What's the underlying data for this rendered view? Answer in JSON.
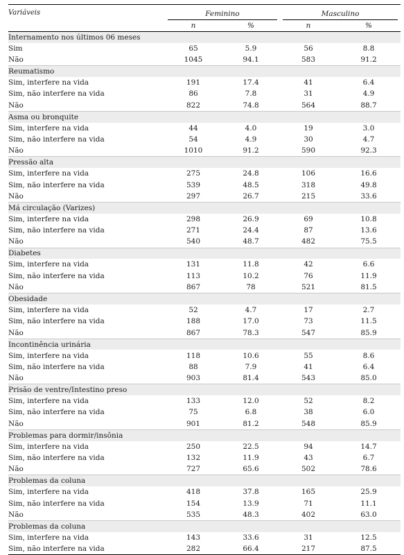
{
  "table": {
    "col_variaveis": "Variáveis",
    "group_feminino": "Feminino",
    "group_masculino": "Masculino",
    "col_n": "n",
    "col_pct": "%",
    "sections": [
      {
        "title": "Internamento nos últimos 06 meses",
        "rows": [
          [
            "Sim",
            "65",
            "5.9",
            "56",
            "8.8"
          ],
          [
            "Não",
            "1045",
            "94.1",
            "583",
            "91.2"
          ]
        ]
      },
      {
        "title": "Reumatismo",
        "rows": [
          [
            "Sim, interfere na vida",
            "191",
            "17.4",
            "41",
            "6.4"
          ],
          [
            "Sim, não interfere na vida",
            "86",
            "7.8",
            "31",
            "4.9"
          ],
          [
            "Não",
            "822",
            "74.8",
            "564",
            "88.7"
          ]
        ]
      },
      {
        "title": "Asma ou bronquite",
        "rows": [
          [
            "Sim, interfere na vida",
            "44",
            "4.0",
            "19",
            "3.0"
          ],
          [
            "Sim, não interfere na vida",
            "54",
            "4.9",
            "30",
            "4.7"
          ],
          [
            "Não",
            "1010",
            "91.2",
            "590",
            "92.3"
          ]
        ]
      },
      {
        "title": "Pressão alta",
        "rows": [
          [
            "Sim, interfere na vida",
            "275",
            "24.8",
            "106",
            "16.6"
          ],
          [
            "Sim, não interfere na vida",
            "539",
            "48.5",
            "318",
            "49.8"
          ],
          [
            "Não",
            "297",
            "26.7",
            "215",
            "33.6"
          ]
        ]
      },
      {
        "title": "Má circulação (Varizes)",
        "rows": [
          [
            "Sim, interfere na vida",
            "298",
            "26.9",
            "69",
            "10.8"
          ],
          [
            "Sim, não interfere na vida",
            "271",
            "24.4",
            "87",
            "13.6"
          ],
          [
            "Não",
            "540",
            "48.7",
            "482",
            "75.5"
          ]
        ]
      },
      {
        "title": "Diabetes",
        "rows": [
          [
            "Sim, interfere na vida",
            "131",
            "11.8",
            "42",
            "6.6"
          ],
          [
            "Sim, não interfere na vida",
            "113",
            "10.2",
            "76",
            "11.9"
          ],
          [
            "Não",
            "867",
            "78",
            "521",
            "81.5"
          ]
        ]
      },
      {
        "title": "Obesidade",
        "rows": [
          [
            "Sim, interfere na vida",
            "52",
            "4.7",
            "17",
            "2.7"
          ],
          [
            "Sim, não interfere na vida",
            "188",
            "17.0",
            "73",
            "11.5"
          ],
          [
            "Não",
            "867",
            "78.3",
            "547",
            "85.9"
          ]
        ]
      },
      {
        "title": "Incontinência urinária",
        "rows": [
          [
            "Sim, interfere na vida",
            "118",
            "10.6",
            "55",
            "8.6"
          ],
          [
            "Sim, não interfere na vida",
            "88",
            "7.9",
            "41",
            "6.4"
          ],
          [
            "Não",
            "903",
            "81.4",
            "543",
            "85.0"
          ]
        ]
      },
      {
        "title": "Prisão de ventre/Intestino preso",
        "rows": [
          [
            "Sim, interfere na vida",
            "133",
            "12.0",
            "52",
            "8.2"
          ],
          [
            "Sim, não interfere na vida",
            "75",
            "6.8",
            "38",
            "6.0"
          ],
          [
            "Não",
            "901",
            "81.2",
            "548",
            "85.9"
          ]
        ]
      },
      {
        "title": "Problemas para dormir/insônia",
        "rows": [
          [
            "Sim, interfere na vida",
            "250",
            "22.5",
            "94",
            "14.7"
          ],
          [
            "Sim, não interfere na vida",
            "132",
            "11.9",
            "43",
            "6.7"
          ],
          [
            "Não",
            "727",
            "65.6",
            "502",
            "78.6"
          ]
        ]
      },
      {
        "title": "Problemas da coluna",
        "rows": [
          [
            "Sim, interfere na vida",
            "418",
            "37.8",
            "165",
            "25.9"
          ],
          [
            "Sim, não interfere na vida",
            "154",
            "13.9",
            "71",
            "11.1"
          ],
          [
            "Não",
            "535",
            "48.3",
            "402",
            "63.0"
          ]
        ]
      },
      {
        "title": "Problemas da coluna",
        "rows": [
          [
            "Sim, interfere na vida",
            "143",
            "33.6",
            "31",
            "12.5"
          ],
          [
            "Sim, não interfere na vida",
            "282",
            "66.4",
            "217",
            "87.5"
          ]
        ]
      }
    ]
  }
}
